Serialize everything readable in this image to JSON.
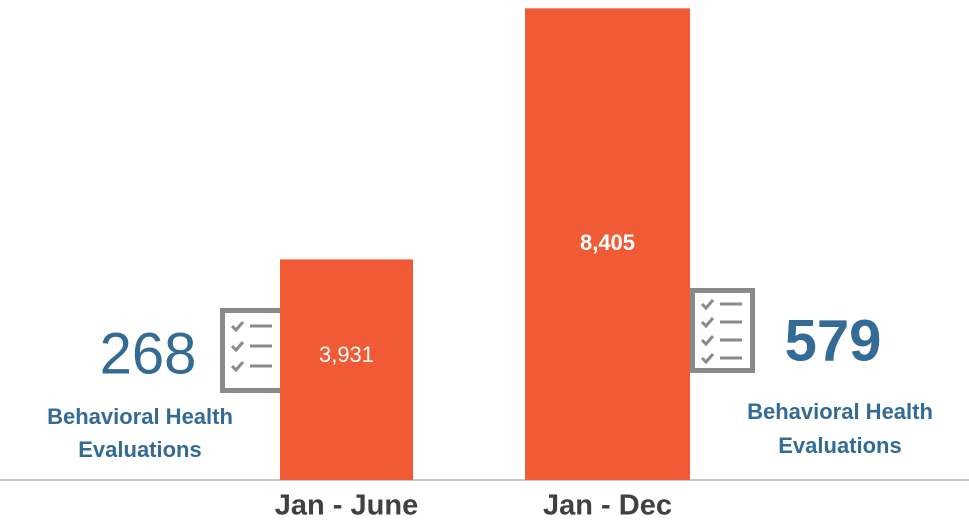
{
  "chart_data": {
    "type": "bar",
    "categories": [
      "Jan - June",
      "Jan - Dec"
    ],
    "values": [
      3931,
      8405
    ],
    "value_labels": [
      "3,931",
      "8,405"
    ],
    "color": "#f05a35",
    "ylim": [
      0,
      8500
    ],
    "annotations": [
      {
        "text": "268",
        "caption": [
          "Behavioral Health",
          "Evaluations"
        ]
      },
      {
        "text": "579",
        "caption": [
          "Behavioral Health",
          "Evaluations"
        ]
      }
    ]
  }
}
